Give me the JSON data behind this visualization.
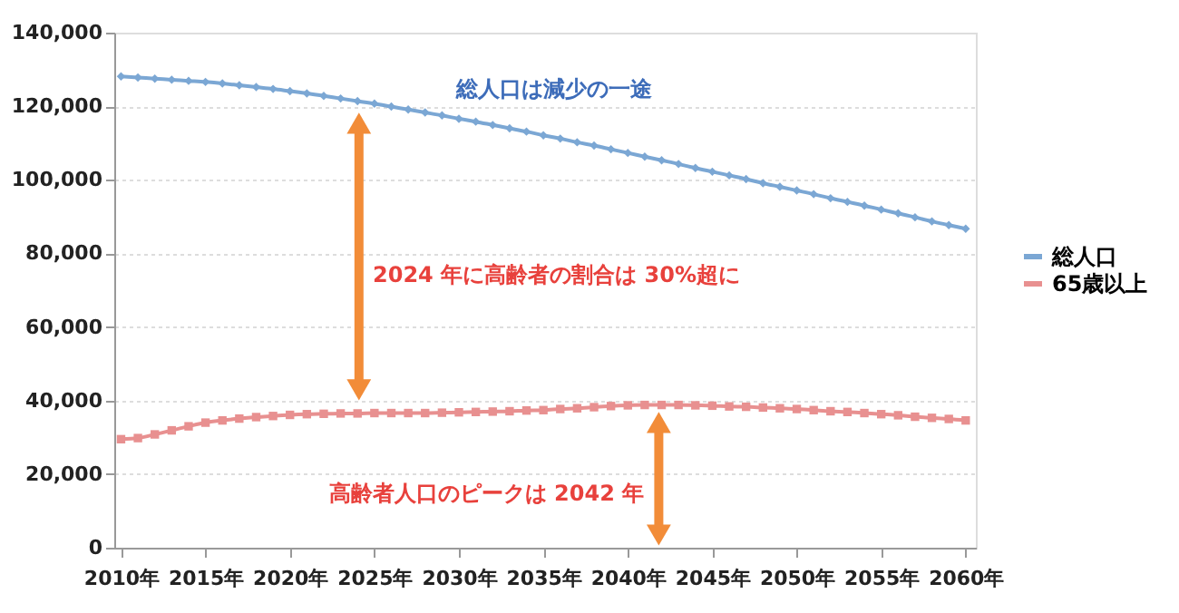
{
  "chart_data": {
    "type": "line",
    "x": [
      2010,
      2011,
      2012,
      2013,
      2014,
      2015,
      2016,
      2017,
      2018,
      2019,
      2020,
      2021,
      2022,
      2023,
      2024,
      2025,
      2026,
      2027,
      2028,
      2029,
      2030,
      2031,
      2032,
      2033,
      2034,
      2035,
      2036,
      2037,
      2038,
      2039,
      2040,
      2041,
      2042,
      2043,
      2044,
      2045,
      2046,
      2047,
      2048,
      2049,
      2050,
      2051,
      2052,
      2053,
      2054,
      2055,
      2056,
      2057,
      2058,
      2059,
      2060
    ],
    "series": [
      {
        "name": "総人口",
        "color": "#7ba7d4",
        "marker": "diamond",
        "values": [
          128100,
          127800,
          127500,
          127200,
          126900,
          126600,
          126200,
          125700,
          125200,
          124700,
          124100,
          123500,
          122800,
          122100,
          121400,
          120700,
          119900,
          119100,
          118300,
          117500,
          116600,
          115800,
          114900,
          114000,
          113100,
          112100,
          111200,
          110200,
          109300,
          108300,
          107300,
          106300,
          105300,
          104300,
          103200,
          102200,
          101200,
          100200,
          99100,
          98100,
          97100,
          96100,
          95000,
          94000,
          93000,
          91900,
          90900,
          89800,
          88700,
          87700,
          86700
        ]
      },
      {
        "name": "65歳以上",
        "color": "#e89090",
        "marker": "square",
        "values": [
          29500,
          29800,
          30800,
          31900,
          33000,
          34000,
          34600,
          35100,
          35500,
          35800,
          36100,
          36300,
          36400,
          36500,
          36500,
          36600,
          36600,
          36600,
          36600,
          36700,
          36800,
          36900,
          37000,
          37100,
          37300,
          37400,
          37700,
          37900,
          38200,
          38500,
          38700,
          38800,
          38800,
          38800,
          38700,
          38600,
          38400,
          38300,
          38100,
          37900,
          37700,
          37400,
          37100,
          36900,
          36600,
          36300,
          36000,
          35600,
          35300,
          35000,
          34600
        ]
      }
    ],
    "xlim": [
      2009.6,
      2060.6
    ],
    "xticks": [
      {
        "value": 2010,
        "label": "2010年"
      },
      {
        "value": 2015,
        "label": "2015年"
      },
      {
        "value": 2020,
        "label": "2020年"
      },
      {
        "value": 2025,
        "label": "2025年"
      },
      {
        "value": 2030,
        "label": "2030年"
      },
      {
        "value": 2035,
        "label": "2035年"
      },
      {
        "value": 2040,
        "label": "2040年"
      },
      {
        "value": 2045,
        "label": "2045年"
      },
      {
        "value": 2050,
        "label": "2050年"
      },
      {
        "value": 2055,
        "label": "2055年"
      },
      {
        "value": 2060,
        "label": "2060年"
      }
    ],
    "ylim": [
      0,
      140000
    ],
    "yticks": [
      0,
      {
        "value": 20000,
        "label": "20,000"
      },
      {
        "value": 40000,
        "label": "40,000"
      },
      {
        "value": 60000,
        "label": "60,000"
      },
      {
        "value": 80000,
        "label": "80,000"
      },
      {
        "value": 100000,
        "label": "100,000"
      },
      {
        "value": 120000,
        "label": "120,000"
      },
      {
        "value": 140000,
        "label": "140,000"
      }
    ],
    "annotations": [
      "総人口は減少の一途",
      "2024 年に高齢者の割合は 30%超に",
      "高齢者人口のピークは 2042 年"
    ],
    "grid": "y",
    "legend": "right"
  }
}
